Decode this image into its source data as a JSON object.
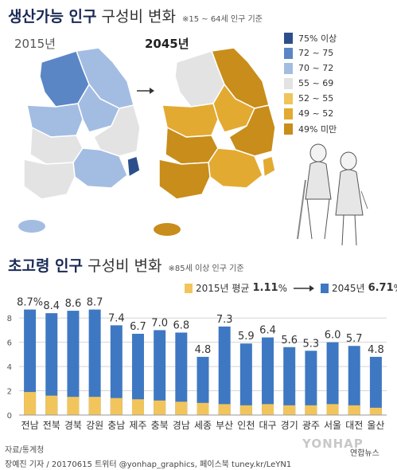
{
  "section1": {
    "title_bold": "생산가능 인구",
    "title_rest": " 구성비 변화",
    "note": "※15 ~ 64세 인구 기준",
    "year_left": "2015년",
    "year_right": "2045년",
    "legend": [
      {
        "label": "75% 이상",
        "color": "#2c4f8c"
      },
      {
        "label": "72 ~ 75",
        "color": "#5a86c6"
      },
      {
        "label": "70 ~ 72",
        "color": "#a3bde2"
      },
      {
        "label": "55 ~ 69",
        "color": "#e3e3e3"
      },
      {
        "label": "52 ~ 55",
        "color": "#efc45a"
      },
      {
        "label": "49 ~ 52",
        "color": "#e3aa32"
      },
      {
        "label": "49% 미만",
        "color": "#c88d1a"
      }
    ]
  },
  "section2": {
    "title_bold": "초고령 인구",
    "title_rest": " 구성비 변화",
    "note": "※85세 이상 인구 기준",
    "legend_2015_prefix": "2015년 평균 ",
    "legend_2015_value": "1.11",
    "legend_2015_unit": "%",
    "legend_2045_prefix": "2045년 ",
    "legend_2045_value": "6.71",
    "legend_2045_unit": "%"
  },
  "chart_data": {
    "type": "bar",
    "categories": [
      "전남",
      "전북",
      "경북",
      "강원",
      "충남",
      "제주",
      "충북",
      "경남",
      "세종",
      "부산",
      "인천",
      "대구",
      "경기",
      "광주",
      "서울",
      "대전",
      "울산"
    ],
    "series": [
      {
        "name": "2015년",
        "values": [
          1.9,
          1.6,
          1.5,
          1.5,
          1.4,
          1.3,
          1.2,
          1.1,
          1.0,
          0.9,
          0.8,
          0.9,
          0.8,
          0.8,
          0.9,
          0.8,
          0.6
        ],
        "color": "#f2c55c"
      },
      {
        "name": "2045년",
        "values": [
          8.7,
          8.4,
          8.6,
          8.7,
          7.4,
          6.7,
          7.0,
          6.8,
          4.8,
          7.3,
          5.9,
          6.4,
          5.6,
          5.3,
          6.0,
          5.7,
          4.8
        ],
        "color": "#3f78c2"
      }
    ],
    "value_labels": [
      "8.7%",
      "8.4",
      "8.6",
      "8.7",
      "7.4",
      "6.7",
      "7.0",
      "6.8",
      "4.8",
      "7.3",
      "5.9",
      "6.4",
      "5.6",
      "5.3",
      "6.0",
      "5.7",
      "4.8"
    ],
    "y_ticks": [
      "0",
      "2",
      "4",
      "6",
      "8"
    ],
    "ylim": [
      0,
      9
    ],
    "grid": true
  },
  "footer": {
    "source": "자료/통계청",
    "credit": "장예진 기자 / 20170615 트위터 @yonhap_graphics, 페이스북 tuney.kr/LeYN1",
    "watermark": "YONHAP",
    "logo_text": "연합뉴스"
  }
}
